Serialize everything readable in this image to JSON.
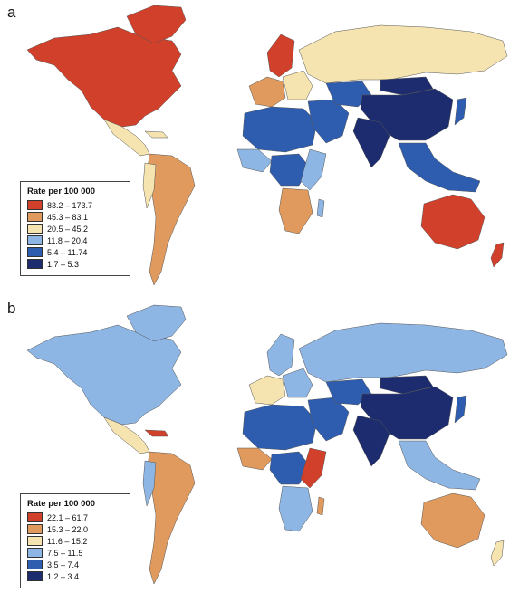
{
  "panels": [
    {
      "letter": "a",
      "legend": {
        "title": "Rate per 100 000",
        "items": [
          {
            "label": "83.2 – 173.7",
            "color": "#d1402b"
          },
          {
            "label": "45.3 – 83.1",
            "color": "#e09a5e"
          },
          {
            "label": "20.5 – 45.2",
            "color": "#f6e4b0"
          },
          {
            "label": "11.8 – 20.4",
            "color": "#8db6e4"
          },
          {
            "label": "5.4 – 11.74",
            "color": "#2e5db0"
          },
          {
            "label": "1.7 – 5.3",
            "color": "#1c2c6e"
          }
        ]
      },
      "fills": {
        "north_america": "#d1402b",
        "greenland": "#d1402b",
        "central_america": "#f6e4b0",
        "caribbean": "#f6e4b0",
        "south_america": "#e09a5e",
        "south_america_west": "#f6e4b0",
        "europe_north": "#d1402b",
        "europe_west": "#e09a5e",
        "europe_east": "#f6e4b0",
        "russia": "#f6e4b0",
        "north_africa": "#2e5db0",
        "west_africa": "#8db6e4",
        "central_africa": "#2e5db0",
        "east_africa": "#8db6e4",
        "southern_africa": "#e09a5e",
        "madagascar": "#8db6e4",
        "middle_east": "#2e5db0",
        "central_asia": "#2e5db0",
        "china": "#1c2c6e",
        "india": "#1c2c6e",
        "mongolia": "#1c2c6e",
        "southeast_asia": "#2e5db0",
        "japan": "#2e5db0",
        "australia": "#d1402b",
        "new_zealand": "#d1402b"
      }
    },
    {
      "letter": "b",
      "legend": {
        "title": "Rate per 100 000",
        "items": [
          {
            "label": "22.1 – 61.7",
            "color": "#d1402b"
          },
          {
            "label": "15.3 – 22.0",
            "color": "#e09a5e"
          },
          {
            "label": "11.6 – 15.2",
            "color": "#f6e4b0"
          },
          {
            "label": "7.5 – 11.5",
            "color": "#8db6e4"
          },
          {
            "label": "3.5 – 7.4",
            "color": "#2e5db0"
          },
          {
            "label": "1.2 – 3.4",
            "color": "#1c2c6e"
          }
        ]
      },
      "fills": {
        "north_america": "#8db6e4",
        "greenland": "#8db6e4",
        "central_america": "#f6e4b0",
        "caribbean": "#d1402b",
        "south_america": "#e09a5e",
        "south_america_west": "#8db6e4",
        "europe_north": "#8db6e4",
        "europe_west": "#f6e4b0",
        "europe_east": "#8db6e4",
        "russia": "#8db6e4",
        "north_africa": "#2e5db0",
        "west_africa": "#e09a5e",
        "central_africa": "#2e5db0",
        "east_africa": "#d1402b",
        "southern_africa": "#8db6e4",
        "madagascar": "#e09a5e",
        "middle_east": "#2e5db0",
        "central_asia": "#2e5db0",
        "china": "#1c2c6e",
        "india": "#1c2c6e",
        "mongolia": "#1c2c6e",
        "southeast_asia": "#8db6e4",
        "japan": "#2e5db0",
        "australia": "#e09a5e",
        "new_zealand": "#f6e4b0"
      }
    }
  ]
}
